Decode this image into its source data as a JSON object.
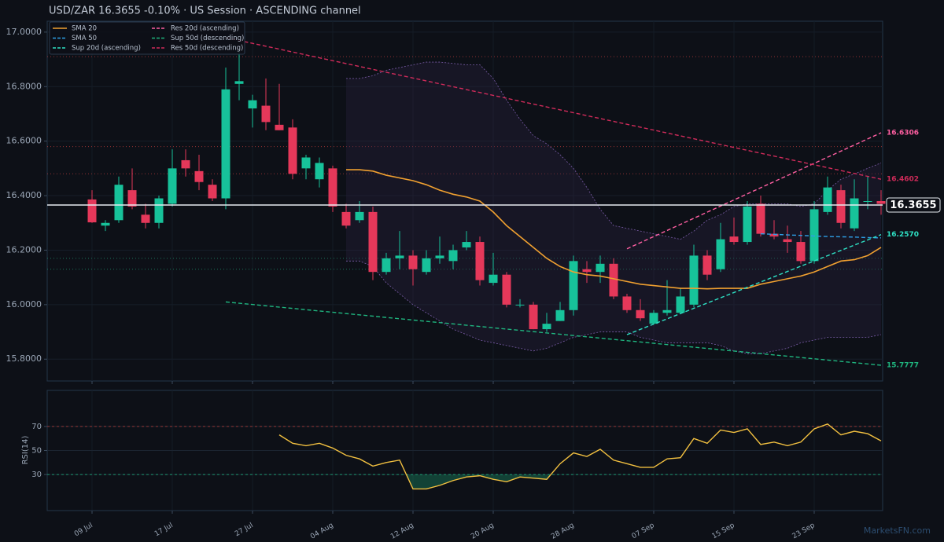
{
  "chart_data": [
    {
      "type": "candlestick",
      "title": "USD/ZAR   16.3655   -0.10%  ·  US Session  ·  ASCENDING channel",
      "categories": [
        "09 Jul",
        null,
        null,
        null,
        null,
        null,
        "17 Jul",
        null,
        null,
        null,
        null,
        null,
        "27 Jul",
        null,
        null,
        null,
        null,
        null,
        "04 Aug",
        null,
        null,
        null,
        null,
        null,
        "12 Aug",
        null,
        null,
        null,
        null,
        null,
        "20 Aug",
        null,
        null,
        null,
        null,
        null,
        "28 Aug",
        null,
        null,
        null,
        null,
        null,
        "07 Sep",
        null,
        null,
        null,
        null,
        null,
        "15 Sep",
        null,
        null,
        null,
        null,
        null,
        "23 Sep",
        null,
        null,
        null,
        null,
        null
      ],
      "open": [
        16.386,
        16.29,
        16.31,
        16.42,
        16.33,
        16.3,
        16.37,
        16.53,
        16.49,
        16.44,
        16.39,
        16.81,
        16.72,
        16.73,
        16.66,
        16.65,
        16.5,
        16.46,
        16.5,
        16.34,
        16.31,
        16.34,
        16.12,
        16.17,
        16.18,
        16.12,
        16.17,
        16.16,
        16.21,
        16.23,
        16.08,
        16.11,
        16.0,
        16.0,
        15.91,
        15.94,
        15.98,
        16.13,
        16.12,
        16.15,
        16.03,
        15.98,
        15.93,
        15.97,
        15.97,
        16.0,
        16.18,
        16.13,
        16.25,
        16.23,
        16.37,
        16.26,
        16.24,
        16.23,
        16.16,
        16.34,
        16.42,
        16.28,
        16.38,
        16.38
      ],
      "high": [
        16.42,
        16.31,
        16.47,
        16.5,
        16.37,
        16.4,
        16.57,
        16.57,
        16.55,
        16.46,
        16.87,
        16.93,
        16.77,
        16.83,
        16.81,
        16.68,
        16.55,
        16.54,
        16.51,
        16.37,
        16.38,
        16.36,
        16.19,
        16.27,
        16.2,
        16.2,
        16.25,
        16.22,
        16.27,
        16.25,
        16.19,
        16.12,
        16.02,
        16.01,
        15.97,
        16.01,
        16.18,
        16.16,
        16.18,
        16.17,
        16.04,
        16.02,
        15.98,
        16.09,
        16.06,
        16.22,
        16.2,
        16.3,
        16.32,
        16.38,
        16.4,
        16.31,
        16.29,
        16.27,
        16.38,
        16.47,
        16.44,
        16.46,
        16.47,
        16.42
      ],
      "low": [
        16.3,
        16.27,
        16.3,
        16.35,
        16.28,
        16.28,
        16.36,
        16.47,
        16.42,
        16.38,
        16.35,
        16.75,
        16.65,
        16.64,
        16.64,
        16.46,
        16.46,
        16.43,
        16.34,
        16.28,
        16.3,
        16.09,
        16.11,
        16.13,
        16.07,
        16.11,
        16.15,
        16.13,
        16.2,
        16.07,
        16.07,
        15.99,
        15.99,
        15.91,
        15.9,
        15.94,
        15.96,
        16.08,
        16.08,
        16.02,
        15.97,
        15.94,
        15.93,
        15.96,
        15.97,
        15.99,
        16.09,
        16.12,
        16.22,
        16.22,
        16.25,
        16.24,
        16.19,
        16.15,
        16.15,
        16.33,
        16.28,
        16.27,
        16.35,
        16.33
      ],
      "close": [
        16.302,
        16.3,
        16.44,
        16.36,
        16.3,
        16.39,
        16.5,
        16.5,
        16.45,
        16.39,
        16.79,
        16.82,
        16.75,
        16.67,
        16.64,
        16.48,
        16.54,
        16.52,
        16.36,
        16.29,
        16.34,
        16.12,
        16.17,
        16.18,
        16.13,
        16.17,
        16.18,
        16.2,
        16.23,
        16.09,
        16.11,
        16.0,
        16.0,
        15.91,
        15.93,
        15.98,
        16.16,
        16.12,
        16.15,
        16.03,
        15.98,
        15.95,
        15.97,
        15.98,
        16.03,
        16.18,
        16.11,
        16.24,
        16.23,
        16.36,
        16.26,
        16.25,
        16.23,
        16.16,
        16.35,
        16.43,
        16.3,
        16.39,
        16.38,
        16.37
      ],
      "up_color": "#17c29a",
      "down_color": "#e5385a",
      "ylim": [
        15.72,
        17.04
      ],
      "yticks": [
        {
          "value": 15.8,
          "label": "15.8000"
        },
        {
          "value": 16.0,
          "label": "16.0000"
        },
        {
          "value": 16.2,
          "label": "16.2000"
        },
        {
          "value": 16.4,
          "label": "16.4000"
        },
        {
          "value": 16.6,
          "label": "16.6000"
        },
        {
          "value": 16.8,
          "label": "16.8000"
        },
        {
          "value": 17.0,
          "label": "17.0000"
        }
      ],
      "grid": true,
      "legend": "upper left",
      "series": [
        {
          "name": "SMA 20",
          "color": "#f0a030",
          "dash": false,
          "values": [
            null,
            null,
            null,
            null,
            null,
            null,
            null,
            null,
            null,
            null,
            null,
            null,
            null,
            null,
            null,
            null,
            null,
            null,
            null,
            16.495,
            16.495,
            16.49,
            16.475,
            16.465,
            16.455,
            16.44,
            16.42,
            16.405,
            16.395,
            16.38,
            16.34,
            16.29,
            16.25,
            16.21,
            16.17,
            16.14,
            16.12,
            16.11,
            16.105,
            16.095,
            16.085,
            16.075,
            16.07,
            16.065,
            16.06,
            16.06,
            16.058,
            16.06,
            16.06,
            16.06,
            16.075,
            16.085,
            16.095,
            16.105,
            16.12,
            16.14,
            16.16,
            16.165,
            16.18,
            16.21
          ]
        },
        {
          "name": "SMA 50",
          "color": "#2e9fe6",
          "dash": true,
          "values": [
            null,
            null,
            null,
            null,
            null,
            null,
            null,
            null,
            null,
            null,
            null,
            null,
            null,
            null,
            null,
            null,
            null,
            null,
            null,
            null,
            null,
            null,
            null,
            null,
            null,
            null,
            null,
            null,
            null,
            null,
            null,
            null,
            null,
            null,
            null,
            null,
            null,
            null,
            null,
            null,
            null,
            null,
            null,
            null,
            null,
            null,
            null,
            null,
            null,
            null,
            16.26,
            16.258,
            16.256,
            16.254,
            16.252,
            16.25,
            16.249,
            16.248,
            16.246,
            16.245
          ]
        },
        {
          "name": "Sup 20d (ascending)",
          "color": "#2ee0c4",
          "dash": true,
          "x": [
            40,
            59
          ],
          "values": [
            15.89,
            16.257
          ],
          "value_labels": [
            null,
            "16.2570"
          ]
        },
        {
          "name": "Res 20d (ascending)",
          "color": "#ff5fa2",
          "dash": true,
          "x": [
            40,
            59
          ],
          "values": [
            16.205,
            16.6306
          ],
          "value_labels": [
            null,
            "16.6306"
          ]
        },
        {
          "name": "Sup 50d (descending)",
          "color": "#1fb57f",
          "dash": true,
          "x": [
            10,
            59
          ],
          "values": [
            16.01,
            15.7777
          ],
          "value_labels": [
            null,
            "15.7777"
          ]
        },
        {
          "name": "Res 50d (descending)",
          "color": "#d02b5a",
          "dash": true,
          "x": [
            10,
            59
          ],
          "values": [
            16.98,
            16.4602
          ],
          "value_labels": [
            null,
            "16.4602"
          ]
        }
      ],
      "bands": {
        "color": "#7a5ca8",
        "upper": [
          null,
          null,
          null,
          null,
          null,
          null,
          null,
          null,
          null,
          null,
          null,
          null,
          null,
          null,
          null,
          null,
          null,
          null,
          null,
          16.83,
          16.83,
          16.84,
          16.86,
          16.87,
          16.88,
          16.89,
          16.89,
          16.885,
          16.88,
          16.88,
          16.83,
          16.75,
          16.68,
          16.62,
          16.59,
          16.55,
          16.5,
          16.43,
          16.35,
          16.29,
          16.28,
          16.27,
          16.26,
          16.25,
          16.24,
          16.27,
          16.31,
          16.33,
          16.36,
          16.37,
          16.37,
          16.37,
          16.37,
          16.36,
          16.37,
          16.42,
          16.46,
          16.48,
          16.5,
          16.52
        ],
        "lower": [
          null,
          null,
          null,
          null,
          null,
          null,
          null,
          null,
          null,
          null,
          null,
          null,
          null,
          null,
          null,
          null,
          null,
          null,
          null,
          16.16,
          16.16,
          16.14,
          16.08,
          16.04,
          16.0,
          15.97,
          15.94,
          15.91,
          15.89,
          15.87,
          15.86,
          15.85,
          15.84,
          15.83,
          15.84,
          15.86,
          15.88,
          15.89,
          15.9,
          15.9,
          15.9,
          15.88,
          15.87,
          15.86,
          15.86,
          15.86,
          15.86,
          15.85,
          15.83,
          15.82,
          15.82,
          15.83,
          15.84,
          15.86,
          15.87,
          15.88,
          15.88,
          15.88,
          15.88,
          15.89
        ]
      },
      "levels": [
        {
          "value": 16.91,
          "color": "#b23a3a"
        },
        {
          "value": 16.58,
          "color": "#b23a3a"
        },
        {
          "value": 16.48,
          "color": "#b23a3a"
        },
        {
          "value": 16.17,
          "color": "#1f8f6a"
        },
        {
          "value": 16.13,
          "color": "#1f8f6a"
        }
      ],
      "last_price": 16.3655
    },
    {
      "type": "line",
      "ylabel": "RSI(14)",
      "ylim": [
        0,
        100
      ],
      "yticks": [
        30,
        50,
        70
      ],
      "color": "#f2c040",
      "values": [
        null,
        null,
        null,
        null,
        null,
        null,
        null,
        null,
        null,
        null,
        null,
        null,
        null,
        null,
        63,
        56,
        54,
        56,
        52,
        46,
        43,
        37,
        40,
        42,
        18,
        18,
        21,
        25,
        28,
        29,
        26,
        24,
        28,
        27,
        26,
        39,
        48,
        45,
        51,
        42,
        39,
        36,
        36,
        43,
        44,
        60,
        56,
        67,
        65,
        68,
        55,
        57,
        54,
        57,
        68,
        72,
        63,
        66,
        64,
        58
      ],
      "levels": [
        {
          "value": 70,
          "color": "#b23a3a"
        },
        {
          "value": 30,
          "color": "#1fb57f"
        }
      ]
    }
  ],
  "watermark": "MarketsFN.com"
}
